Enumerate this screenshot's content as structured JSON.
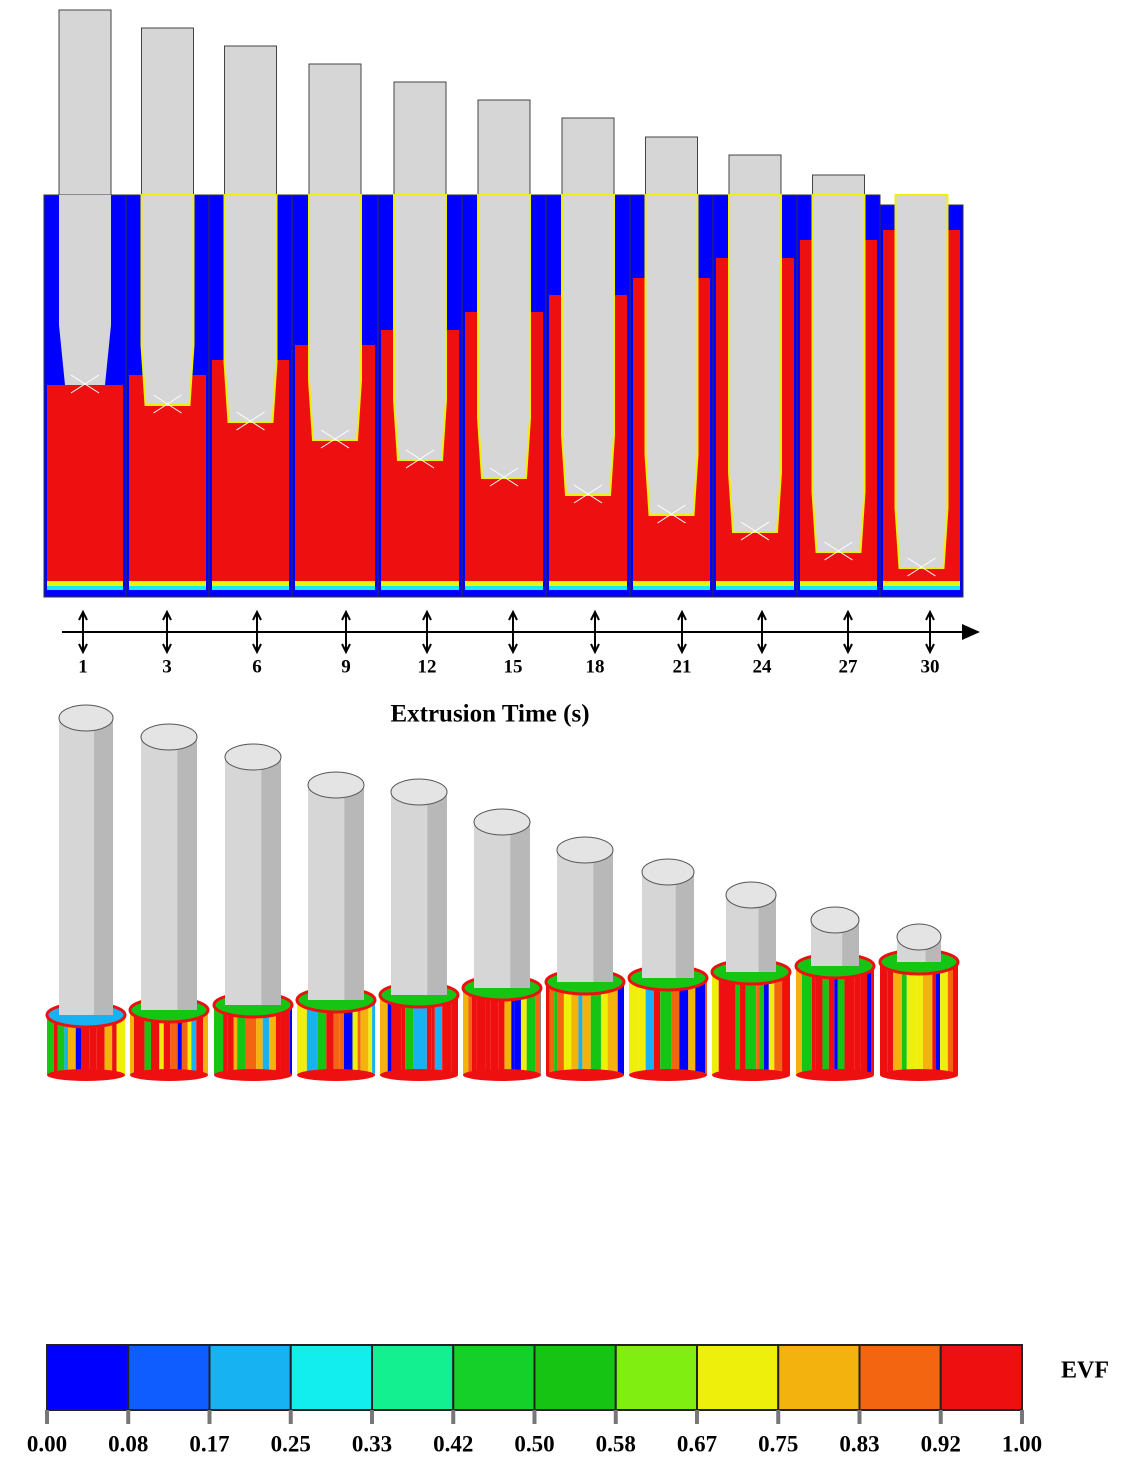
{
  "timeline": {
    "ticks": [
      "1",
      "3",
      "6",
      "9",
      "12",
      "15",
      "18",
      "21",
      "24",
      "27",
      "30"
    ],
    "label": "Extrusion Time (s)"
  },
  "colorbar": {
    "title": "EVF",
    "colors": [
      "#0000ff",
      "#0f5cff",
      "#17b2f2",
      "#12eeee",
      "#12f090",
      "#15d028",
      "#16c413",
      "#80ee10",
      "#eef00c",
      "#f4b20e",
      "#f36510",
      "#ee1010"
    ],
    "ticks": [
      "0.00",
      "0.08",
      "0.17",
      "0.25",
      "0.33",
      "0.42",
      "0.50",
      "0.58",
      "0.67",
      "0.75",
      "0.83",
      "0.92",
      "1.00"
    ]
  },
  "punch_color": "#d6d6d6"
}
